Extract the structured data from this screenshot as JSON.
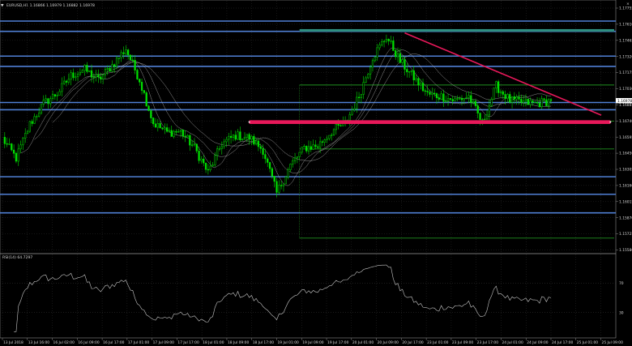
{
  "window": {
    "title": "EURUSD,H1  1.16866 1.16979 1.16882 1.16978",
    "close_glyph": "×",
    "corner_glyph": "▼",
    "label_title": "window-title"
  },
  "colors": {
    "background": "#000000",
    "grid": "#3a3a3a",
    "frame": "#8a8a8a",
    "bull": "#00e000",
    "bear": "#00a000",
    "horizontal_level": "#4f7fd4",
    "trend_line": "#e8185a",
    "support_bar": "#e8185a",
    "fib_line": "#1f8f1f",
    "teal_box": "#2e8f80",
    "ma": "#b8b8b8",
    "rsi": "#c8c8c8",
    "text": "#d8d8d8"
  },
  "price_axis_labels": [
    "1.17755",
    "1.17610",
    "1.17465",
    "1.17320",
    "1.17175",
    "1.17030",
    "1.16885",
    "1.16740",
    "1.16595",
    "1.16450",
    "1.16305",
    "1.16160",
    "1.16015",
    "1.15870",
    "1.15725",
    "1.15580"
  ],
  "current_price": "1.16978",
  "time_axis_labels": [
    "13 Jul 2018",
    "13 Jul 16:00",
    "16 Jul 02:00",
    "16 Jul 09:00",
    "16 Jul 17:00",
    "17 Jul 01:00",
    "17 Jul 09:00",
    "17 Jul 17:00",
    "18 Jul 01:00",
    "18 Jul 09:00",
    "18 Jul 17:00",
    "19 Jul 01:00",
    "19 Jul 09:00",
    "19 Jul 17:00",
    "20 Jul 01:00",
    "20 Jul 09:00",
    "20 Jul 17:00",
    "23 Jul 01:00",
    "23 Jul 09:00",
    "23 Jul 17:00",
    "24 Jul 01:00",
    "24 Jul 09:00",
    "24 Jul 17:00",
    "25 Jul 01:00",
    "25 Jul 09:00"
  ],
  "rsi": {
    "title": "RSI(14) 64.7297",
    "levels": [
      "70",
      "30"
    ]
  },
  "chart_data": {
    "type": "candlestick",
    "symbol": "EURUSD",
    "timeframe": "H1",
    "ohlc_header": {
      "open": 1.16866,
      "high": 1.16979,
      "low": 1.16882,
      "close": 1.16978
    },
    "ylim": [
      1.1551,
      1.1786
    ],
    "anchors": [
      [
        0,
        1.1661
      ],
      [
        6,
        1.1642
      ],
      [
        12,
        1.1675
      ],
      [
        18,
        1.1695
      ],
      [
        24,
        1.1705
      ],
      [
        30,
        1.1722
      ],
      [
        36,
        1.1728
      ],
      [
        42,
        1.1718
      ],
      [
        48,
        1.1732
      ],
      [
        54,
        1.1748
      ],
      [
        60,
        1.1718
      ],
      [
        66,
        1.1676
      ],
      [
        72,
        1.1667
      ],
      [
        78,
        1.1668
      ],
      [
        84,
        1.1652
      ],
      [
        90,
        1.1628
      ],
      [
        96,
        1.1656
      ],
      [
        102,
        1.1664
      ],
      [
        108,
        1.1662
      ],
      [
        114,
        1.165
      ],
      [
        120,
        1.1608
      ],
      [
        126,
        1.1635
      ],
      [
        132,
        1.1652
      ],
      [
        138,
        1.1654
      ],
      [
        144,
        1.1668
      ],
      [
        150,
        1.1676
      ],
      [
        156,
        1.1702
      ],
      [
        162,
        1.174
      ],
      [
        168,
        1.176
      ],
      [
        174,
        1.1736
      ],
      [
        180,
        1.172
      ],
      [
        186,
        1.1704
      ],
      [
        192,
        1.1702
      ],
      [
        198,
        1.1698
      ],
      [
        204,
        1.1702
      ],
      [
        210,
        1.1676
      ],
      [
        216,
        1.1712
      ],
      [
        222,
        1.1698
      ],
      [
        228,
        1.1696
      ],
      [
        234,
        1.1695
      ],
      [
        240,
        1.1698
      ]
    ],
    "horizontal_levels": [
      1.1775,
      1.1765,
      1.1741,
      1.1731,
      1.1696,
      1.1689,
      1.1624,
      1.1607,
      1.1589
    ],
    "teal_box": {
      "x_from": 130,
      "x_to": 268,
      "price_from": 1.1766,
      "price_to": 1.17655
    },
    "support_bar": {
      "x_from": 108,
      "x_to": 266,
      "price": 1.1677
    },
    "trend_line": {
      "from": [
        176,
        1.17635
      ],
      "to": [
        262,
        1.16837
      ]
    },
    "fib_levels": [
      {
        "price": 1.1713,
        "x_from": 130,
        "x_to": 268
      },
      {
        "price": 1.1678,
        "x_from": 130,
        "x_to": 268
      },
      {
        "price": 1.1651,
        "x_from": 130,
        "x_to": 268
      },
      {
        "price": 1.15645,
        "x_from": 130,
        "x_to": 268
      }
    ],
    "rsi_ylim": [
      0,
      100
    ],
    "rsi_levels": [
      70,
      30
    ]
  }
}
